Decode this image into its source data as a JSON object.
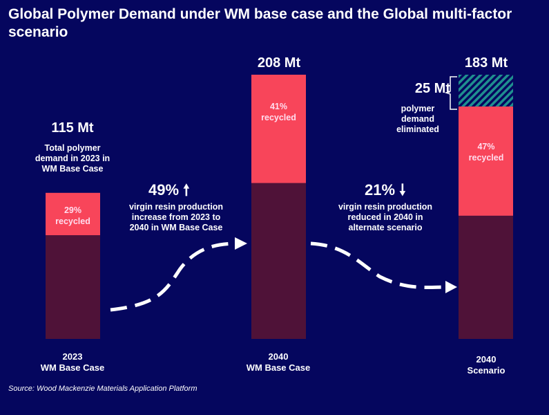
{
  "title": "Global Polymer Demand under WM base case and the Global multi-factor scenario",
  "source": "Source: Wood Mackenzie Materials Application Platform",
  "colors": {
    "background": "#05065e",
    "virgin": "#4f1238",
    "recycled": "#f8455a",
    "eliminated_hatch": "#1f8f8f",
    "text": "#ffffff"
  },
  "chart_data": {
    "type": "bar",
    "stacked": true,
    "unit": "Mt",
    "categories": [
      "2023\nWM Base Case",
      "2040\nWM Base Case",
      "2040\nScenario"
    ],
    "category_lines": [
      [
        "2023",
        "WM Base Case"
      ],
      [
        "2040",
        "WM Base Case"
      ],
      [
        "2040",
        "Scenario"
      ]
    ],
    "totals": [
      115,
      208,
      183
    ],
    "total_labels": [
      "115 Mt",
      "208 Mt",
      "183 Mt"
    ],
    "recycled_share_pct": [
      29,
      41,
      47
    ],
    "recycled_labels": [
      [
        "29%",
        "recycled"
      ],
      [
        "41%",
        "recycled"
      ],
      [
        "47%",
        "recycled"
      ]
    ],
    "eliminated": [
      0,
      0,
      25
    ],
    "eliminated_label": "25 Mt",
    "eliminated_desc": [
      "polymer",
      "demand",
      "eliminated"
    ],
    "annotations": {
      "first_bar_desc": [
        "Total polymer",
        "demand in 2023 in",
        "WM Base Case"
      ],
      "increase": {
        "value": "49%",
        "arrow": "up-arrow",
        "text": [
          "virgin resin production",
          "increase from 2023 to",
          "2040 in WM Base Case"
        ]
      },
      "decrease": {
        "value": "21%",
        "arrow": "down-arrow",
        "text": [
          "virgin resin production",
          "reduced in 2040 in",
          "alternate scenario"
        ]
      }
    },
    "grid": false,
    "legend": "none"
  }
}
